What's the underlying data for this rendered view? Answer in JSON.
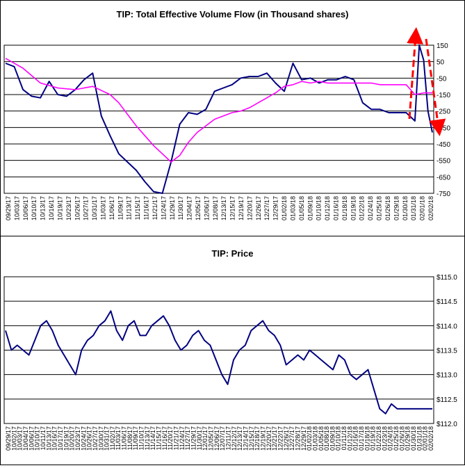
{
  "chart_data": [
    {
      "type": "line",
      "title": "TIP: Total Effective Volume Flow (in Thousand shares)",
      "ylim": [
        -750,
        150
      ],
      "yticks": [
        150,
        50,
        -50,
        -150,
        -250,
        -350,
        -450,
        -550,
        -650,
        -750
      ],
      "ytick_labels": [
        "150",
        "50",
        "-50",
        "-150",
        "-250",
        "-350",
        "-450",
        "-550",
        "-650",
        "-750"
      ],
      "grid": true,
      "xtick_labels": [
        "09/29/17",
        "10/03/17",
        "10/06/17",
        "10/10/17",
        "10/13/17",
        "10/16/17",
        "10/19/17",
        "10/23/17",
        "10/26/17",
        "10/27/17",
        "10/31/17",
        "11/03/17",
        "11/06/17",
        "11/09/17",
        "11/13/17",
        "11/15/17",
        "11/16/17",
        "11/21/17",
        "11/24/17",
        "11/29/17",
        "11/30/17",
        "12/04/17",
        "12/05/17",
        "12/06/17",
        "12/08/17",
        "12/13/17",
        "12/15/17",
        "12/19/17",
        "12/20/17",
        "12/26/17",
        "12/27/17",
        "12/29/17",
        "01/02/18",
        "01/03/18",
        "01/05/18",
        "01/09/18",
        "01/10/18",
        "01/12/18",
        "01/16/18",
        "01/18/18",
        "01/19/18",
        "01/22/18",
        "01/24/18",
        "01/25/18",
        "01/26/18",
        "01/29/18",
        "01/30/18",
        "01/31/18",
        "02/01/18",
        "02/02/18"
      ],
      "series": [
        {
          "color": "#000080",
          "x": [
            0,
            1,
            2,
            3,
            4,
            5,
            6,
            7,
            8,
            9,
            10,
            11,
            12,
            13,
            14,
            15,
            16,
            17,
            18,
            19,
            20,
            21,
            22,
            23,
            24,
            25,
            26,
            27,
            28,
            29,
            30,
            31,
            32,
            33,
            34,
            35,
            36,
            37,
            38,
            39,
            40,
            41,
            42,
            43,
            44,
            45,
            46,
            47,
            47.5,
            48,
            48.5,
            49
          ],
          "values": [
            40,
            20,
            -120,
            -160,
            -170,
            -70,
            -150,
            -160,
            -120,
            -60,
            -20,
            -280,
            -400,
            -510,
            -560,
            -610,
            -680,
            -740,
            -750,
            -560,
            -330,
            -260,
            -270,
            -240,
            -130,
            -110,
            -90,
            -50,
            -40,
            -40,
            -20,
            -80,
            -130,
            40,
            -60,
            -50,
            -80,
            -60,
            -60,
            -40,
            -60,
            -200,
            -240,
            -240,
            -260,
            -260,
            -260,
            -310,
            150,
            60,
            -250,
            -380
          ]
        },
        {
          "color": "#ff00ff",
          "x": [
            0,
            2,
            4,
            6,
            8,
            10,
            12,
            13,
            14,
            15,
            16,
            17,
            18,
            19,
            20,
            21,
            22,
            23,
            24,
            25,
            26,
            27,
            28,
            29,
            30,
            31,
            32,
            33,
            34,
            35,
            36,
            37,
            38,
            39,
            40,
            41,
            42,
            43,
            44,
            45,
            46,
            47,
            48,
            49
          ],
          "values": [
            70,
            10,
            -80,
            -110,
            -120,
            -100,
            -150,
            -200,
            -270,
            -340,
            -400,
            -460,
            -510,
            -560,
            -520,
            -440,
            -380,
            -340,
            -300,
            -280,
            -260,
            -250,
            -230,
            -200,
            -170,
            -140,
            -100,
            -90,
            -70,
            -80,
            -70,
            -80,
            -80,
            -80,
            -80,
            -80,
            -80,
            -90,
            -90,
            -90,
            -90,
            -150,
            -140,
            -140
          ]
        }
      ]
    },
    {
      "type": "line",
      "title": "TIP: Price",
      "ylim": [
        112.0,
        115.0
      ],
      "yticks": [
        115.0,
        114.5,
        114.0,
        113.5,
        113.0,
        112.5,
        112.0
      ],
      "ytick_labels": [
        "$115.0",
        "$114.5",
        "$114.0",
        "$113.5",
        "$113.0",
        "$112.5",
        "$112.0"
      ],
      "grid": true,
      "xtick_labels": [
        "09/29/17",
        "10/02/17",
        "10/03/17",
        "10/04/17",
        "10/06/17",
        "10/10/17",
        "10/11/17",
        "10/13/17",
        "10/16/17",
        "10/17/17",
        "10/19/17",
        "10/20/17",
        "10/23/17",
        "10/24/17",
        "10/26/17",
        "10/27/17",
        "10/30/17",
        "10/31/17",
        "11/02/17",
        "11/03/17",
        "11/06/17",
        "11/08/17",
        "11/09/17",
        "11/10/17",
        "11/13/17",
        "11/14/17",
        "11/15/17",
        "11/16/17",
        "11/20/17",
        "11/21/17",
        "11/24/17",
        "11/27/17",
        "11/29/17",
        "11/30/17",
        "12/01/17",
        "12/05/17",
        "12/06/17",
        "12/07/17",
        "12/11/17",
        "12/12/17",
        "12/13/17",
        "12/14/17",
        "12/15/17",
        "12/18/17",
        "12/19/17",
        "12/20/17",
        "12/21/17",
        "12/22/17",
        "12/26/17",
        "12/27/17",
        "12/28/17",
        "12/29/17",
        "01/02/18",
        "01/03/18",
        "01/05/18",
        "01/08/18",
        "01/09/18",
        "01/10/18",
        "01/11/18",
        "01/12/18",
        "01/16/18",
        "01/17/18",
        "01/18/18",
        "01/19/18",
        "01/22/18",
        "01/23/18",
        "01/24/18",
        "01/25/18",
        "01/26/18",
        "01/29/18",
        "01/30/18",
        "01/31/18",
        "02/01/18",
        "02/02/18"
      ],
      "series": [
        {
          "color": "#000080",
          "x": [
            0,
            1,
            2,
            3,
            4,
            5,
            6,
            7,
            8,
            9,
            10,
            11,
            12,
            13,
            14,
            15,
            16,
            17,
            18,
            19,
            20,
            21,
            22,
            23,
            24,
            25,
            26,
            27,
            28,
            29,
            30,
            31,
            32,
            33,
            34,
            35,
            36,
            37,
            38,
            39,
            40,
            41,
            42,
            43,
            44,
            45,
            46,
            47,
            48,
            49,
            50,
            51,
            52,
            53,
            54,
            55,
            56,
            57,
            58,
            59,
            60,
            61,
            62,
            63,
            64,
            65,
            66,
            67,
            68,
            69,
            70,
            71,
            72,
            73
          ],
          "values": [
            113.9,
            113.5,
            113.6,
            113.5,
            113.4,
            113.7,
            114.0,
            114.1,
            113.9,
            113.6,
            113.4,
            113.2,
            113.0,
            113.5,
            113.7,
            113.8,
            114.0,
            114.1,
            114.3,
            113.9,
            113.7,
            114.0,
            114.1,
            113.8,
            113.8,
            114.0,
            114.1,
            114.2,
            114.0,
            113.7,
            113.5,
            113.6,
            113.8,
            113.9,
            113.7,
            113.6,
            113.3,
            113.0,
            112.8,
            113.3,
            113.5,
            113.6,
            113.9,
            114.0,
            114.1,
            113.9,
            113.8,
            113.6,
            113.2,
            113.3,
            113.4,
            113.3,
            113.5,
            113.4,
            113.3,
            113.2,
            113.1,
            113.4,
            113.3,
            113.0,
            112.9,
            113.0,
            113.1,
            112.7,
            112.3,
            112.2,
            112.4,
            112.3,
            112.3,
            112.3,
            112.3,
            112.3,
            112.3,
            112.3
          ]
        }
      ]
    }
  ]
}
